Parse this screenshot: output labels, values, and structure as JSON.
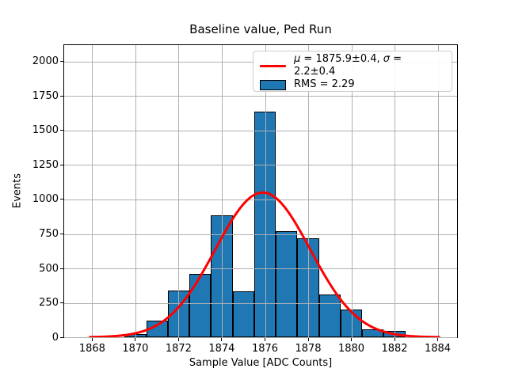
{
  "chart_data": {
    "type": "histogram",
    "title": "Baseline value, Ped Run",
    "xlabel": "Sample Value [ADC Counts]",
    "ylabel": "Events",
    "xlim": [
      1866.7,
      1884.9
    ],
    "ylim": [
      0,
      2120
    ],
    "xticks": [
      1868,
      1870,
      1872,
      1874,
      1876,
      1878,
      1880,
      1882,
      1884
    ],
    "yticks": [
      0,
      250,
      500,
      750,
      1000,
      1250,
      1500,
      1750,
      2000
    ],
    "grid": true,
    "legend_position": "upper right",
    "bins": {
      "width": 1,
      "centers": [
        1870,
        1871,
        1872,
        1873,
        1874,
        1875,
        1876,
        1877,
        1878,
        1879,
        1880,
        1881,
        1882
      ],
      "counts": [
        25,
        120,
        340,
        460,
        885,
        335,
        1635,
        770,
        720,
        310,
        200,
        60,
        45
      ]
    },
    "fit": {
      "type": "gaussian",
      "mu": 1875.9,
      "mu_err": 0.4,
      "sigma": 2.2,
      "sigma_err": 0.4,
      "amplitude": 1050,
      "x_range": [
        1867.9,
        1884.1
      ]
    },
    "legend": {
      "fit": {
        "mu_symbol": "μ",
        "mu_text": " = 1875.9±0.4, ",
        "sigma_symbol": "σ",
        "sigma_text": " = 2.2±0.4"
      },
      "rms_label": "RMS = 2.29"
    },
    "colors": {
      "bar_fill": "#1f77b4",
      "bar_edge": "#000000",
      "fit_line": "#ff0000",
      "grid": "#b0b0b0",
      "spine": "#000000",
      "text": "#000000"
    }
  }
}
